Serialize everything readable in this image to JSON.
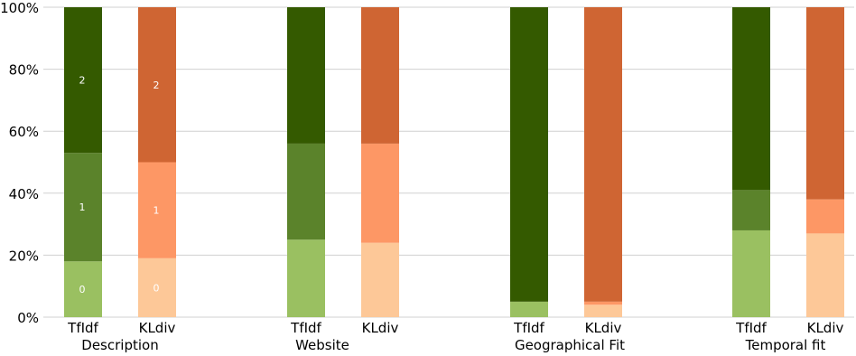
{
  "chart_data": {
    "type": "bar",
    "stacked": true,
    "normalized": true,
    "ylim": [
      0,
      100
    ],
    "yticks": [
      "0%",
      "20%",
      "40%",
      "60%",
      "80%",
      "100%"
    ],
    "grid": true,
    "groups": [
      {
        "name": "Description",
        "bars": [
          {
            "label": "TfIdf",
            "palette": "green",
            "values": [
              18,
              35,
              47
            ],
            "data_labels": [
              "0",
              "1",
              "2"
            ]
          },
          {
            "label": "KLdiv",
            "palette": "orange",
            "values": [
              19,
              31,
              50
            ],
            "data_labels": [
              "0",
              "1",
              "2"
            ]
          }
        ]
      },
      {
        "name": "Website",
        "bars": [
          {
            "label": "TfIdf",
            "palette": "green",
            "values": [
              25,
              31,
              44
            ],
            "data_labels": []
          },
          {
            "label": "KLdiv",
            "palette": "orange",
            "values": [
              24,
              32,
              44
            ],
            "data_labels": []
          }
        ]
      },
      {
        "name": "Geographical Fit",
        "bars": [
          {
            "label": "TfIdf",
            "palette": "green",
            "values": [
              5,
              0,
              95
            ],
            "data_labels": []
          },
          {
            "label": "KLdiv",
            "palette": "orange",
            "values": [
              4,
              1,
              95
            ],
            "data_labels": []
          }
        ]
      },
      {
        "name": "Temporal fit",
        "bars": [
          {
            "label": "TfIdf",
            "palette": "green",
            "values": [
              28,
              13,
              59
            ],
            "data_labels": []
          },
          {
            "label": "KLdiv",
            "palette": "orange",
            "values": [
              27,
              11,
              62
            ],
            "data_labels": []
          }
        ]
      }
    ],
    "colors": {
      "green": [
        "#9ac061",
        "#5b832b",
        "#345a00"
      ],
      "orange": [
        "#fdc898",
        "#fd9765",
        "#cf6533"
      ]
    }
  }
}
